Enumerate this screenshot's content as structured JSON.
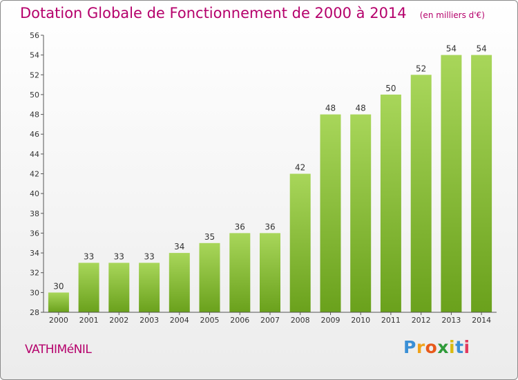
{
  "chart_data": {
    "type": "bar",
    "title": "Dotation Globale de Fonctionnement de 2000 à 2014",
    "subtitle": "(en milliers d'€)",
    "xlabel": "",
    "ylabel": "",
    "categories": [
      "2000",
      "2001",
      "2002",
      "2003",
      "2004",
      "2005",
      "2006",
      "2007",
      "2008",
      "2009",
      "2010",
      "2011",
      "2012",
      "2013",
      "2014"
    ],
    "values": [
      30,
      33,
      33,
      33,
      34,
      35,
      36,
      36,
      42,
      48,
      48,
      50,
      52,
      54,
      54
    ],
    "ylim": [
      28,
      56
    ],
    "yticks": [
      28,
      30,
      32,
      34,
      36,
      38,
      40,
      42,
      44,
      46,
      48,
      50,
      52,
      54,
      56
    ],
    "grid": false,
    "legend": "none",
    "colors": {
      "bar_light": "#a8d65a",
      "bar_dark": "#6aa11c",
      "title": "#b5006b",
      "axis": "#555555"
    }
  },
  "footer": {
    "commune": "VATHIMéNIL",
    "logo": {
      "p": "P",
      "r": "r",
      "o": "o",
      "x": "x",
      "i1": "i",
      "t": "t",
      "i2": "i"
    }
  }
}
